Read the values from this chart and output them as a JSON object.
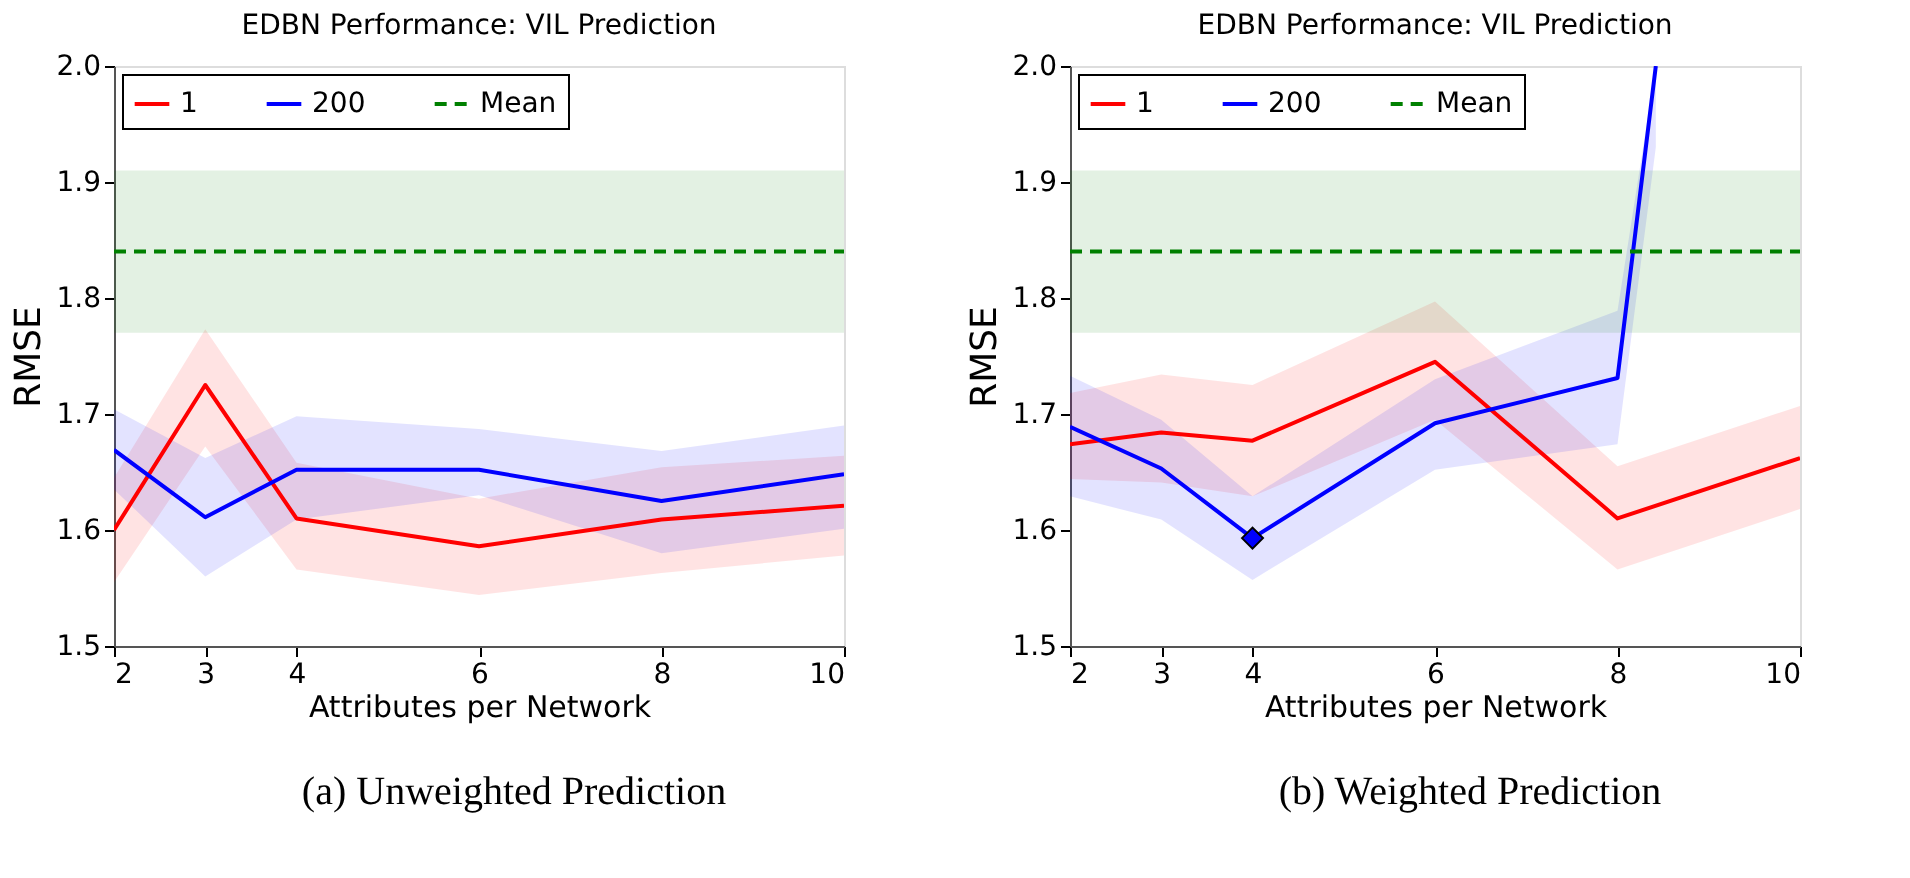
{
  "chart_data": [
    {
      "type": "line",
      "title": "EDBN Performance: VIL Prediction",
      "xlabel": "Attributes per Network",
      "ylabel": "RMSE",
      "x": [
        2,
        3,
        4,
        6,
        8,
        10
      ],
      "xlim": [
        2,
        10
      ],
      "xticks": [
        2,
        3,
        4,
        6,
        8,
        10
      ],
      "ylim": [
        1.5,
        2.0
      ],
      "yticks": [
        1.5,
        1.6,
        1.7,
        1.8,
        1.9,
        {
          "value": 2,
          "label": "2.0"
        }
      ],
      "grid": false,
      "legend": "top left",
      "line_style": "solid",
      "annotations": [
        "(a) Unweighted Prediction"
      ],
      "series": [
        {
          "name": "1",
          "color": "#ff0000",
          "values": [
            1.6,
            1.725,
            1.61,
            1.586,
            1.609,
            1.621
          ],
          "lower": [
            1.555,
            1.672,
            1.566,
            1.544,
            1.563,
            1.578
          ],
          "upper": [
            1.645,
            1.773,
            1.658,
            1.627,
            1.654,
            1.664
          ]
        },
        {
          "name": "200",
          "color": "#0000ff",
          "values": [
            1.669,
            1.611,
            1.652,
            1.652,
            1.625,
            1.648
          ],
          "lower": [
            1.635,
            1.56,
            1.609,
            1.63,
            1.58,
            1.601
          ],
          "upper": [
            1.704,
            1.662,
            1.698,
            1.687,
            1.668,
            1.69
          ]
        },
        {
          "name": "Mean",
          "color": "#008000",
          "line_style": "dashed",
          "x": [
            2,
            10
          ],
          "values": [
            1.84,
            1.84
          ],
          "lower": [
            1.77,
            1.77
          ],
          "upper": [
            1.91,
            1.91
          ]
        }
      ]
    },
    {
      "type": "line",
      "title": "EDBN Performance: VIL Prediction",
      "xlabel": "Attributes per Network",
      "ylabel": "RMSE",
      "x": [
        2,
        3,
        4,
        6,
        8,
        10
      ],
      "xlim": [
        2,
        10
      ],
      "xticks": [
        2,
        3,
        4,
        6,
        8,
        10
      ],
      "ylim": [
        1.5,
        2.0
      ],
      "yticks": [
        1.5,
        1.6,
        1.7,
        1.8,
        1.9,
        {
          "value": 2,
          "label": "2.0"
        }
      ],
      "grid": false,
      "legend": "top left",
      "line_style": "solid",
      "annotations": [
        "(b) Weighted Prediction"
      ],
      "series": [
        {
          "name": "1",
          "color": "#ff0000",
          "values": [
            1.674,
            1.684,
            1.677,
            1.745,
            1.61,
            1.662
          ],
          "lower": [
            1.644,
            1.641,
            1.629,
            1.695,
            1.566,
            1.618
          ],
          "upper": [
            1.718,
            1.734,
            1.725,
            1.797,
            1.655,
            1.707
          ]
        },
        {
          "name": "200",
          "color": "#0000ff",
          "x": [
            2,
            3,
            4,
            6,
            8,
            8.42
          ],
          "values": [
            1.689,
            1.653,
            1.593,
            1.692,
            1.731,
            2.0
          ],
          "lower": [
            1.629,
            1.609,
            1.557,
            1.652,
            1.674,
            1.93
          ],
          "upper": [
            1.733,
            1.695,
            1.629,
            1.73,
            1.789,
            2.0
          ]
        },
        {
          "name": "Mean",
          "color": "#008000",
          "line_style": "dashed",
          "x": [
            2,
            10
          ],
          "values": [
            1.84,
            1.84
          ],
          "lower": [
            1.77,
            1.77
          ],
          "upper": [
            1.91,
            1.91
          ]
        },
        {
          "type": "scatter",
          "marker": "diamond",
          "color": "#0000ff",
          "x": [
            4
          ],
          "values": [
            1.593
          ]
        }
      ]
    }
  ]
}
